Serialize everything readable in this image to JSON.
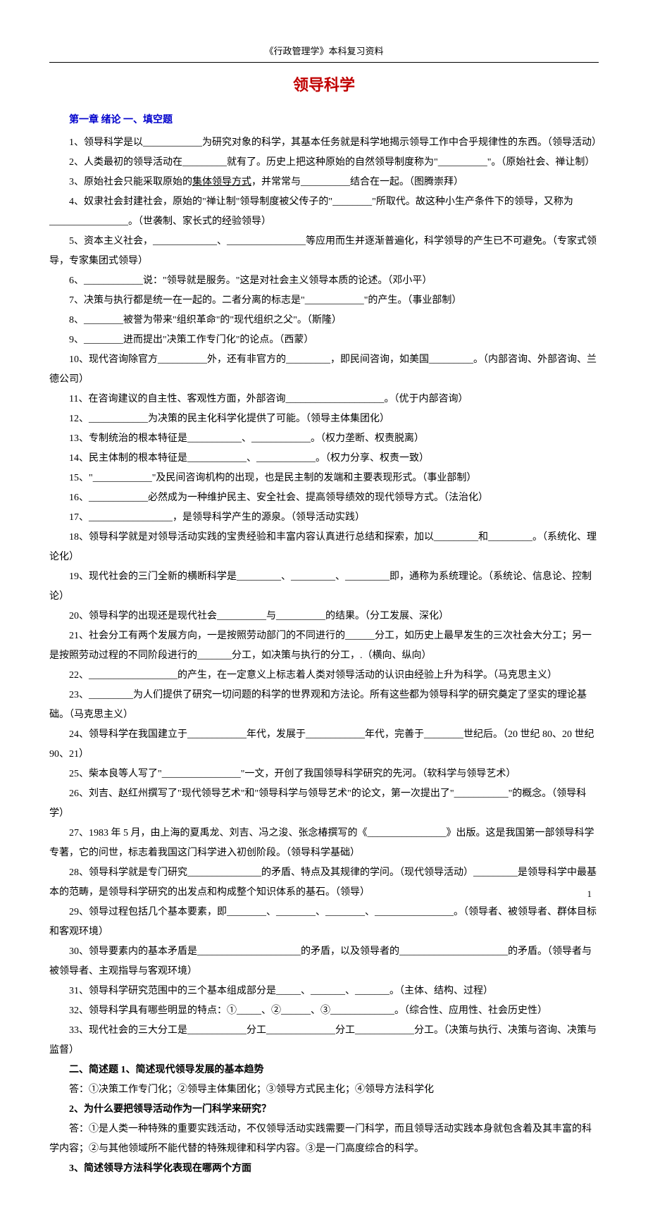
{
  "page": {
    "header": "《行政管理学》本科复习资料",
    "mainTitle": "领导科学",
    "sectionHeading1": "第一章  绪论  一、填空题",
    "pageNumber": "1"
  },
  "fillBlanks": [
    "1、领导科学是以____________为研究对象的科学，其基本任务就是科学地揭示领导工作中合乎规律性的东西。（领导活动）",
    "2、人类最初的领导活动在_________就有了。历史上把这种原始的自然领导制度称为\"__________\"。（原始社会、禅让制）",
    "3、原始社会只能采取原始的<u>集体领导方式</u>，并常常与__________结合在一起。（图腾崇拜）",
    "4、奴隶社会封建社会，原始的\"禅让制\"领导制度被父传子的\"________\"所取代。故这种小生产条件下的领导，又称为________________。（世袭制、家长式的经验领导）",
    "5、资本主义社会，_____________、________________等应用而生并逐渐普遍化，科学领导的产生已不可避免。（专家式领导，专家集团式领导）",
    "6、____________说：\"领导就是服务。\"这是对社会主义领导本质的论述。（邓小平）",
    "7、决策与执行都是统一在一起的。二者分离的标志是\"____________\"的产生。（事业部制）",
    "8、________被誉为带来\"组织革命\"的\"现代组织之父\"。（斯隆）",
    "9、________进而提出\"决策工作专门化\"的论点。（西蒙）",
    "10、现代咨询除官方__________外，还有非官方的_________，即民间咨询，如美国_________。（内部咨询、外部咨询、兰德公司）",
    "11、在咨询建议的自主性、客观性方面，外部咨询____________________。（优于内部咨询）",
    "12、____________为决策的民主化科学化提供了可能。（领导主体集团化）",
    "13、专制统治的根本特征是___________、____________。（权力垄断、权责脱离）",
    "14、民主体制的根本特征是____________、____________。（权力分享、权责一致）",
    "15、\"____________\"及民间咨询机构的出现，也是民主制的发端和主要表现形式。（事业部制）",
    "16、____________必然成为一种维护民主、安全社会、提高领导绩效的现代领导方式。（法治化）",
    "17、_________________，是领导科学产生的源泉。（领导活动实践）",
    "18、领导科学就是对领导活动实践的宝贵经验和丰富内容认真进行总结和探索，加以_________和_________。（系统化、理论化）",
    "19、现代社会的三门全新的横断科学是_________、_________、_________即，通称为系统理论。（系统论、信息论、控制论）",
    "20、领导科学的出现还是现代社会__________与__________的结果。（分工发展、深化）",
    "21、社会分工有两个发展方向，一是按照劳动部门的不同进行的______分工，如历史上最早发生的三次社会大分工；另一是按照劳动过程的不同阶段进行的_______分工，如决策与执行的分工，.（横向、纵向）",
    "22、__________________的产生，在一定意义上标志着人类对领导活动的认识由经验上升为科学。（马克思主义）",
    "23、_________为人们提供了研究一切问题的科学的世界观和方法论。所有这些都为领导科学的研究奠定了坚实的理论基础。（马克思主义）",
    "24、领导科学在我国建立于____________年代，发展于____________年代，完善于________世纪后。（20 世纪 80、20 世纪 90、21）",
    "25、柴本良等人写了\"________________\"一文，开创了我国领导科学研究的先河。（软科学与领导艺术）",
    "26、刘吉、赵红州撰写了\"现代领导艺术\"和\"领导科学与领导艺术\"的论文，第一次提出了\"___________\"的概念。（领导科学）",
    "27、1983 年 5 月，由上海的夏禹龙、刘吉、冯之浚、张念椿撰写的《________________》出版。这是我国第一部领导科学专著，它的问世，标志着我国这门科学进入初创阶段。（领导科学基础）",
    "28、领导科学就是专门研究_______________的矛盾、特点及其规律的学问。（现代领导活动）_________是领导科学中最基本的范畴，是领导科学研究的出发点和构成整个知识体系的基石。（领导）",
    "29、领导过程包括几个基本要素，即________、________、________、________________。（领导者、被领导者、群体目标和客观环境）",
    "30、领导要素内的基本矛盾是_____________________的矛盾，以及领导者的______________________的矛盾。（领导者与被领导者、主观指导与客观环境）",
    "31、领导科学研究范围中的三个基本组成部分是_____、_______、_______。（主体、结构、过程）",
    "32、领导科学具有哪些明显的特点：①_____、②______、③_____________。（综合性、应用性、社会历史性）",
    "33、现代社会的三大分工是____________分工______________分工____________分工。（决策与执行、决策与咨询、决策与监督）"
  ],
  "essay": {
    "heading": "二、简述题    1、简述现代领导发展的基本趋势",
    "a1": "答：①决策工作专门化；②领导主体集团化；③领导方式民主化；④领导方法科学化",
    "q2": "2、为什么要把领导活动作为一门科学来研究？",
    "a2": "答：①是人类一种特殊的重要实践活动，不仅领导活动实践需要一门科学，而且领导活动实践本身就包含着及其丰富的科学内容；②与其他领域所不能代替的特殊规律和科学内容。③是一门高度综合的科学。",
    "q3": "3、简述领导方法科学化表现在哪两个方面"
  },
  "style": {
    "bodyFontSize": 14,
    "lineHeight": 2.0,
    "titleColor": "#c00000",
    "headingColor": "#0000cc",
    "textColor": "#000000",
    "background": "#ffffff",
    "pageWidth": 920,
    "pageHeight": 1302
  }
}
